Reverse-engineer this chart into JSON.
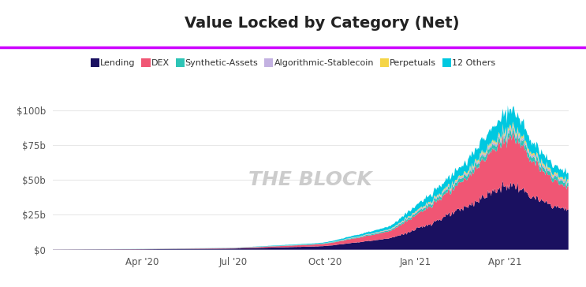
{
  "title": "Value Locked by Category (Net)",
  "title_fontsize": 14,
  "watermark": "THE BLOCK",
  "background_color": "#ffffff",
  "legend_labels": [
    "Lending",
    "DEX",
    "Synthetic-Assets",
    "Algorithmic-Stablecoin",
    "Perpetuals",
    "12 Others"
  ],
  "legend_colors": [
    "#1a1060",
    "#f05674",
    "#2ec4b6",
    "#c3b1e1",
    "#f5d547",
    "#00c8e0"
  ],
  "area_colors": [
    "#1a1060",
    "#f05674",
    "#2ec4b6",
    "#c3b1e1",
    "#f5d547",
    "#00c8e0"
  ],
  "yticks": [
    0,
    25,
    50,
    75,
    100
  ],
  "ytick_labels": [
    "$0",
    "$25b",
    "$50b",
    "$75b",
    "$100b"
  ],
  "ylim": [
    0,
    107
  ],
  "xtick_labels": [
    "Apr '20",
    "Jul '20",
    "Oct '20",
    "Jan '21",
    "Apr '21"
  ],
  "purple_line_color": "#cc00ff",
  "grid_color": "#e8e8e8",
  "n_points": 520
}
